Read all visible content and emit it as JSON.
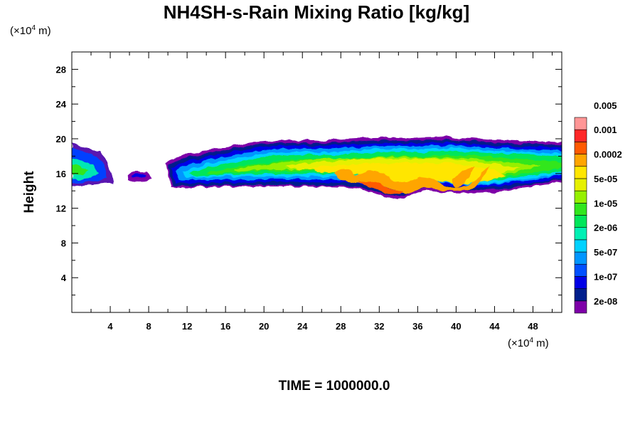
{
  "chart_data": {
    "type": "heatmap",
    "title": "NH4SH-s-Rain Mixing Ratio [kg/kg]",
    "ylabel": "Height",
    "x_unit": {
      "prefix": "(×10",
      "exp": "4",
      "suffix": " m)"
    },
    "y_unit": {
      "prefix": "(×10",
      "exp": "4",
      "suffix": " m)"
    },
    "xlim": [
      0,
      51
    ],
    "ylim": [
      0,
      30
    ],
    "x_ticks": [
      4,
      8,
      12,
      16,
      20,
      24,
      28,
      32,
      36,
      40,
      44,
      48
    ],
    "y_ticks": [
      4,
      8,
      12,
      16,
      20,
      24,
      28
    ],
    "colorbar": {
      "colors": [
        "#7e00a8",
        "#001e8c",
        "#0000e6",
        "#0050ff",
        "#0096ff",
        "#00d2ff",
        "#00f0b4",
        "#00e65a",
        "#32e61e",
        "#96f000",
        "#e6f000",
        "#ffe600",
        "#ffa500",
        "#ff5a00",
        "#ff2828",
        "#ff9696"
      ],
      "labels": [
        "2e-08",
        "1e-07",
        "5e-07",
        "2e-06",
        "1e-05",
        "5e-05",
        "0.0002",
        "0.001",
        "0.005"
      ]
    },
    "time_label": "TIME = 1000000.0"
  }
}
